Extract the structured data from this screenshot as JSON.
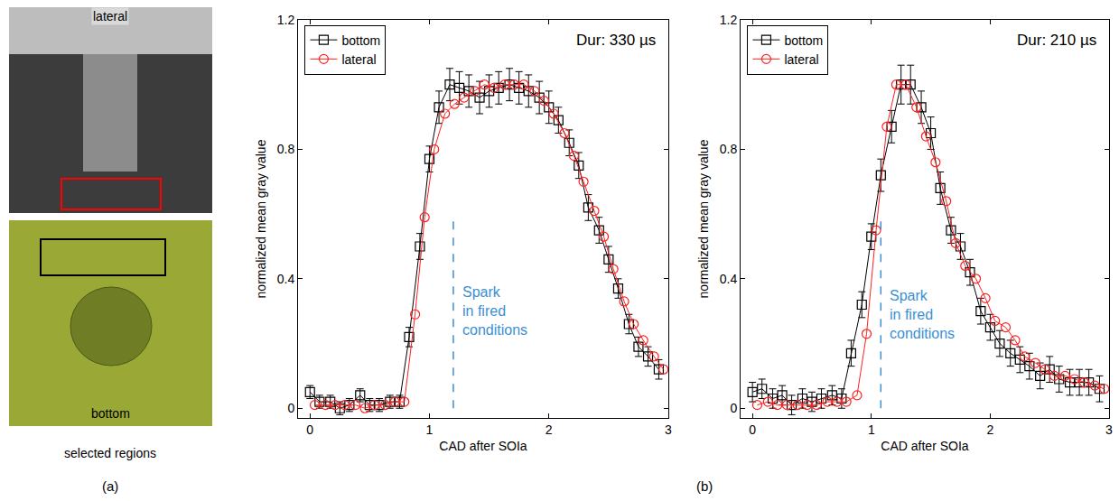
{
  "chart_data": [
    {
      "type": "line",
      "annotation": "Dur: 330 µs",
      "x_label": "CAD after SOIa",
      "y_label": "normalized mean gray value",
      "xlim": [
        -0.1,
        3.0
      ],
      "xticks": [
        0,
        1,
        2,
        3
      ],
      "ylim": [
        -0.03,
        1.2
      ],
      "yticks": [
        0,
        0.4,
        0.8,
        1.2
      ],
      "grid": false,
      "legend": "top left",
      "spark": {
        "x": 1.2,
        "y_end": 0.6,
        "label": [
          "Spark",
          "in fired",
          "conditions"
        ],
        "color": "#3b8fd4",
        "line_style": "dash"
      },
      "series": [
        {
          "name": "bottom",
          "color": "#000000",
          "marker": "square-open",
          "line_style": "solid",
          "x": [
            0,
            0.08,
            0.17,
            0.25,
            0.33,
            0.42,
            0.5,
            0.58,
            0.67,
            0.75,
            0.83,
            0.92,
            1.0,
            1.08,
            1.17,
            1.25,
            1.33,
            1.42,
            1.5,
            1.58,
            1.67,
            1.75,
            1.83,
            1.92,
            2.0,
            2.08,
            2.17,
            2.25,
            2.33,
            2.42,
            2.5,
            2.58,
            2.67,
            2.75,
            2.83,
            2.92
          ],
          "values": [
            0.05,
            0.02,
            0.02,
            0.0,
            0.01,
            0.04,
            0.01,
            0.01,
            0.02,
            0.02,
            0.22,
            0.5,
            0.77,
            0.93,
            1.0,
            0.99,
            0.98,
            0.96,
            0.98,
            0.99,
            1.0,
            0.99,
            0.98,
            0.96,
            0.93,
            0.89,
            0.82,
            0.75,
            0.62,
            0.55,
            0.46,
            0.37,
            0.26,
            0.19,
            0.16,
            0.12
          ],
          "errors": [
            0.02,
            0.02,
            0.02,
            0.02,
            0.02,
            0.02,
            0.02,
            0.02,
            0.02,
            0.02,
            0.03,
            0.04,
            0.04,
            0.05,
            0.05,
            0.05,
            0.05,
            0.05,
            0.05,
            0.05,
            0.05,
            0.05,
            0.05,
            0.05,
            0.05,
            0.04,
            0.04,
            0.04,
            0.04,
            0.04,
            0.04,
            0.03,
            0.03,
            0.03,
            0.03,
            0.03
          ]
        },
        {
          "name": "lateral",
          "color": "#ff2020",
          "marker": "circle-open",
          "line_style": "solid",
          "x": [
            0.04,
            0.13,
            0.21,
            0.29,
            0.38,
            0.46,
            0.54,
            0.63,
            0.71,
            0.79,
            0.88,
            0.96,
            1.04,
            1.13,
            1.21,
            1.29,
            1.38,
            1.46,
            1.54,
            1.63,
            1.71,
            1.79,
            1.88,
            1.96,
            2.04,
            2.13,
            2.21,
            2.29,
            2.38,
            2.46,
            2.54,
            2.63,
            2.71,
            2.79,
            2.88,
            2.96
          ],
          "values": [
            0.01,
            0.01,
            0.01,
            0.01,
            0.01,
            0.0,
            0.01,
            0.01,
            0.02,
            0.02,
            0.29,
            0.59,
            0.8,
            0.91,
            0.94,
            0.96,
            0.98,
            1.0,
            0.99,
            1.0,
            1.0,
            1.0,
            0.98,
            0.95,
            0.91,
            0.85,
            0.78,
            0.7,
            0.61,
            0.53,
            0.43,
            0.33,
            0.26,
            0.21,
            0.16,
            0.12
          ]
        }
      ]
    },
    {
      "type": "line",
      "annotation": "Dur: 210 µs",
      "x_label": "CAD after SOIa",
      "y_label": "normalized mean gray value",
      "xlim": [
        -0.1,
        3.0
      ],
      "xticks": [
        0,
        1,
        2,
        3
      ],
      "ylim": [
        -0.03,
        1.2
      ],
      "yticks": [
        0,
        0.4,
        0.8,
        1.2
      ],
      "grid": false,
      "legend": "top left",
      "spark": {
        "x": 1.08,
        "y_end": 0.58,
        "label": [
          "Spark",
          "in fired",
          "conditions"
        ],
        "color": "#3b8fd4",
        "line_style": "dash"
      },
      "series": [
        {
          "name": "bottom",
          "color": "#000000",
          "marker": "square-open",
          "line_style": "solid",
          "x": [
            0,
            0.08,
            0.17,
            0.25,
            0.33,
            0.42,
            0.5,
            0.58,
            0.67,
            0.75,
            0.83,
            0.92,
            1.0,
            1.08,
            1.17,
            1.25,
            1.33,
            1.42,
            1.5,
            1.58,
            1.67,
            1.75,
            1.83,
            1.92,
            2.0,
            2.08,
            2.17,
            2.25,
            2.33,
            2.42,
            2.5,
            2.58,
            2.67,
            2.75,
            2.83,
            2.92
          ],
          "values": [
            0.05,
            0.06,
            0.03,
            0.04,
            0.01,
            0.03,
            0.02,
            0.03,
            0.04,
            0.03,
            0.17,
            0.32,
            0.53,
            0.72,
            0.87,
            1.0,
            1.0,
            0.93,
            0.85,
            0.68,
            0.55,
            0.5,
            0.42,
            0.3,
            0.25,
            0.2,
            0.17,
            0.15,
            0.13,
            0.1,
            0.12,
            0.09,
            0.08,
            0.08,
            0.08,
            0.06
          ],
          "errors": [
            0.03,
            0.03,
            0.03,
            0.03,
            0.03,
            0.03,
            0.03,
            0.03,
            0.03,
            0.03,
            0.04,
            0.04,
            0.04,
            0.05,
            0.05,
            0.06,
            0.06,
            0.05,
            0.05,
            0.05,
            0.04,
            0.04,
            0.04,
            0.04,
            0.04,
            0.04,
            0.04,
            0.04,
            0.04,
            0.04,
            0.04,
            0.04,
            0.04,
            0.04,
            0.04,
            0.04
          ]
        },
        {
          "name": "lateral",
          "color": "#ff2020",
          "marker": "circle-open",
          "line_style": "solid",
          "x": [
            0.04,
            0.13,
            0.21,
            0.29,
            0.38,
            0.46,
            0.54,
            0.63,
            0.71,
            0.79,
            0.88,
            0.96,
            1.04,
            1.13,
            1.21,
            1.29,
            1.38,
            1.46,
            1.54,
            1.63,
            1.71,
            1.79,
            1.88,
            1.96,
            2.04,
            2.13,
            2.21,
            2.29,
            2.38,
            2.46,
            2.54,
            2.63,
            2.71,
            2.79,
            2.88,
            2.96
          ],
          "values": [
            0.01,
            0.02,
            0.01,
            0.01,
            0.01,
            0.01,
            0.01,
            0.02,
            0.02,
            0.02,
            0.04,
            0.23,
            0.55,
            0.87,
            1.0,
            1.0,
            0.93,
            0.84,
            0.76,
            0.64,
            0.51,
            0.44,
            0.4,
            0.34,
            0.27,
            0.25,
            0.21,
            0.16,
            0.14,
            0.12,
            0.1,
            0.1,
            0.09,
            0.08,
            0.07,
            0.06
          ]
        }
      ]
    }
  ],
  "figure": {
    "panel_a": {
      "top_image_label": "lateral",
      "bottom_image_label": "bottom",
      "caption": "selected regions",
      "letter": "(a)"
    },
    "panel_b": {
      "letter": "(b)"
    }
  }
}
